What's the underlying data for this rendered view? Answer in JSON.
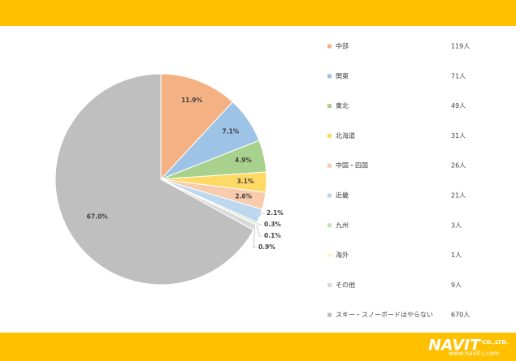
{
  "chart_data": {
    "type": "pie",
    "categories": [
      "中部",
      "関東",
      "東北",
      "北海道",
      "中国・四国",
      "近畿",
      "九州",
      "海外",
      "その他",
      "スキー・スノーボードはやらない"
    ],
    "values": [
      11.9,
      7.1,
      4.9,
      3.1,
      2.6,
      2.1,
      0.3,
      0.1,
      0.9,
      67.0
    ],
    "value_labels": [
      "11.9%",
      "7.1%",
      "4.9%",
      "3.1%",
      "2.6%",
      "2.1%",
      "0.3%",
      "0.1%",
      "0.9%",
      "67.0%"
    ],
    "count_labels": [
      "119人",
      "71人",
      "49人",
      "31人",
      "26人",
      "21人",
      "3人",
      "1人",
      "9人",
      "670人"
    ],
    "colors": [
      "#f4b183",
      "#9dc3e6",
      "#a9d18e",
      "#ffd966",
      "#f8cbad",
      "#bdd7ee",
      "#c5e0b4",
      "#fff2cc",
      "#d9d9d9",
      "#bfbfbf"
    ],
    "legend": "right"
  },
  "footer": {
    "logo": "NAVIT",
    "company": "CO.,LTD.",
    "url": "www.navit-j.com"
  }
}
